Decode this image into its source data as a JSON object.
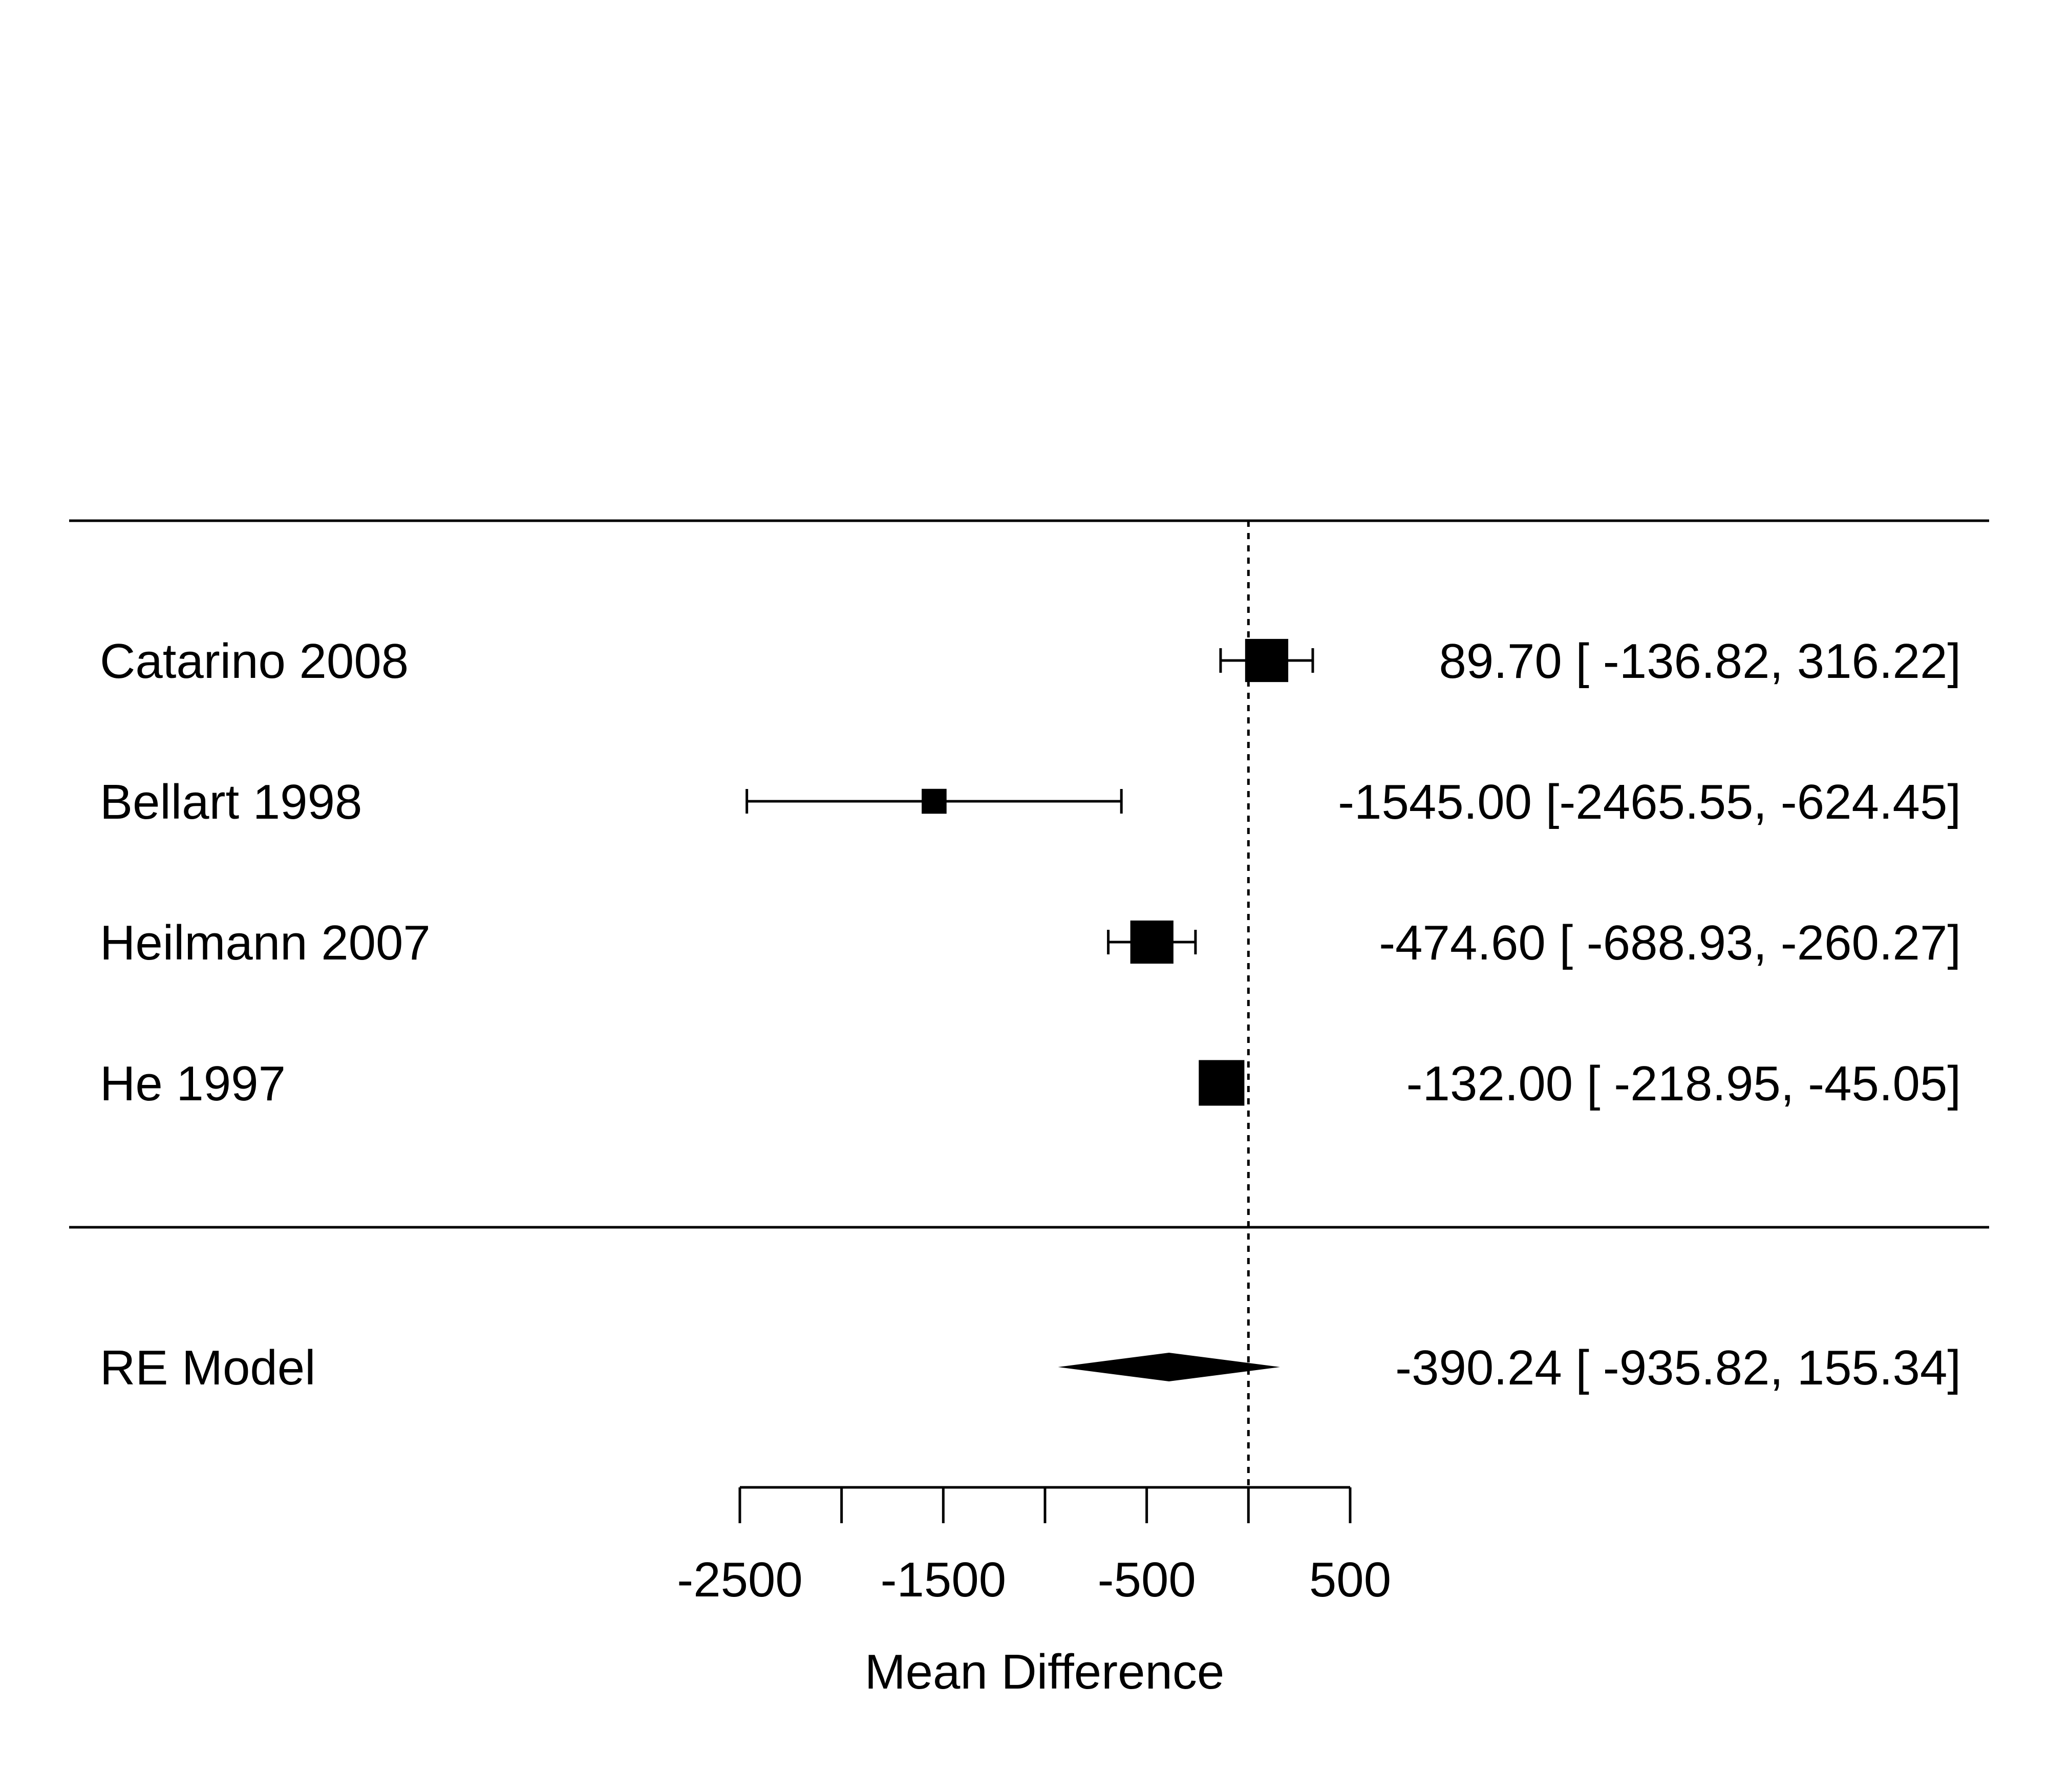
{
  "chart_data": {
    "type": "forest",
    "xlabel": "Mean Difference",
    "xlim": [
      -2500,
      500
    ],
    "ticks": [
      -2500,
      -2000,
      -1500,
      -1000,
      -500,
      0,
      500
    ],
    "tick_labels": [
      "-2500",
      "",
      "-1500",
      "",
      "-500",
      "",
      "500"
    ],
    "reference_line": 0,
    "studies": [
      {
        "name": "Catarino 2008",
        "estimate": 89.7,
        "lower": -136.82,
        "upper": 316.22,
        "weight": 0.3,
        "text": "89.70 [ -136.82,  316.22]"
      },
      {
        "name": "Bellart 1998",
        "estimate": -1545.0,
        "lower": -2465.55,
        "upper": -624.45,
        "weight": 0.05,
        "text": "-1545.00 [-2465.55, -624.45]"
      },
      {
        "name": "Heilmann 2007",
        "estimate": -474.6,
        "lower": -688.93,
        "upper": -260.27,
        "weight": 0.3,
        "text": "-474.60 [ -688.93, -260.27]"
      },
      {
        "name": "He 1997",
        "estimate": -132.0,
        "lower": -218.95,
        "upper": -45.05,
        "weight": 0.35,
        "text": "-132.00 [ -218.95,  -45.05]"
      }
    ],
    "summary": {
      "name": "RE Model",
      "estimate": -390.24,
      "lower": -935.82,
      "upper": 155.34,
      "text": "-390.24 [ -935.82,  155.34]"
    }
  }
}
